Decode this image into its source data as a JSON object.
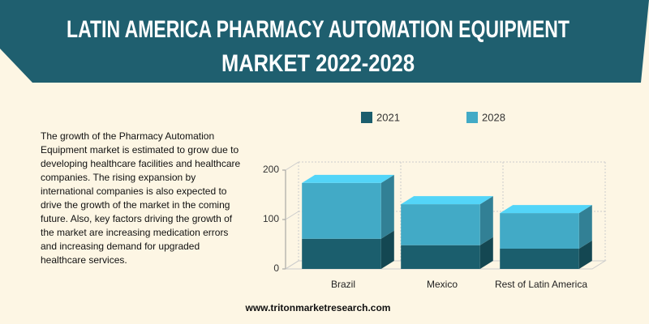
{
  "header": {
    "title_lines": [
      "LATIN AMERICA PHARMACY AUTOMATION EQUIPMENT",
      "MARKET 2022-2028"
    ]
  },
  "description": "The growth of the Pharmacy Automation Equipment market is estimated to grow due to developing healthcare facilities and healthcare companies. The rising expansion by international companies is also expected to drive the growth of the market in the coming future. Also, key factors driving the growth of the market are increasing medication errors and increasing demand for upgraded healthcare services.",
  "footer": "www.tritonmarketresearch.com",
  "chart_data": {
    "type": "bar",
    "stacked": true,
    "categories": [
      "Brazil",
      "Mexico",
      "Rest of Latin America"
    ],
    "series": [
      {
        "name": "2021",
        "color": "#1b5e6d",
        "values": [
          61,
          48,
          41
        ]
      },
      {
        "name": "2028",
        "color": "#42aac6",
        "values": [
          113,
          83,
          72
        ]
      }
    ],
    "ylim": [
      0,
      200
    ],
    "yticks": [
      0,
      100,
      200
    ],
    "grid": true
  }
}
